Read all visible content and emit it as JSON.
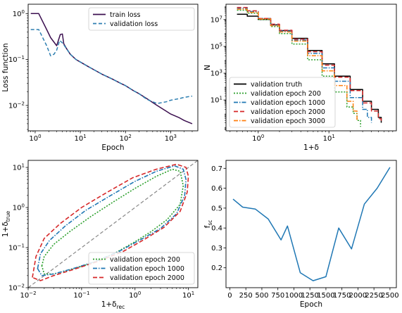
{
  "chart_data": [
    {
      "type": "line",
      "xlabel": "Epoch",
      "ylabel": "Loss function",
      "xscale": "log",
      "yscale": "log",
      "xlim": [
        0.7,
        4000
      ],
      "ylim": [
        0.0028,
        1.6
      ],
      "xticks": [
        {
          "v": 1,
          "b": "10",
          "e": "0"
        },
        {
          "v": 10,
          "b": "10",
          "e": "1"
        },
        {
          "v": 100,
          "b": "10",
          "e": "2"
        },
        {
          "v": 1000,
          "b": "10",
          "e": "3"
        }
      ],
      "yticks": [
        {
          "v": 1,
          "b": "10",
          "e": "0"
        },
        {
          "v": 0.1,
          "b": "10",
          "e": "−1"
        },
        {
          "v": 0.01,
          "b": "10",
          "e": "−2"
        }
      ],
      "legend_loc": "top-right",
      "series": [
        {
          "name": "train loss",
          "color": "#3b0f4f",
          "dash": "",
          "x": [
            0.8,
            1.2,
            1.8,
            2.2,
            3.0,
            3.6,
            4.0,
            4.3,
            5,
            6,
            8,
            10,
            15,
            20,
            30,
            50,
            80,
            100,
            150,
            200,
            300,
            500,
            800,
            1000,
            1500,
            2000,
            3000
          ],
          "y": [
            1.0,
            1.0,
            0.45,
            0.3,
            0.2,
            0.35,
            0.36,
            0.22,
            0.17,
            0.13,
            0.1,
            0.088,
            0.07,
            0.06,
            0.048,
            0.038,
            0.03,
            0.027,
            0.021,
            0.018,
            0.014,
            0.01,
            0.0075,
            0.0065,
            0.0055,
            0.0047,
            0.004
          ]
        },
        {
          "name": "validation loss",
          "color": "#2e7fb1",
          "dash": "5,3",
          "x": [
            0.8,
            1.2,
            1.8,
            2.2,
            2.6,
            3.0,
            3.5,
            4.0,
            5,
            6,
            8,
            10,
            15,
            20,
            30,
            50,
            80,
            100,
            150,
            200,
            300,
            500,
            800,
            1000,
            1500,
            2000,
            3000
          ],
          "y": [
            0.45,
            0.45,
            0.2,
            0.12,
            0.13,
            0.16,
            0.26,
            0.23,
            0.17,
            0.13,
            0.1,
            0.088,
            0.07,
            0.06,
            0.048,
            0.038,
            0.03,
            0.027,
            0.021,
            0.018,
            0.0135,
            0.011,
            0.012,
            0.013,
            0.014,
            0.015,
            0.016
          ]
        }
      ]
    },
    {
      "type": "step",
      "xlabel": "1+δ",
      "ylabel": "N",
      "xscale": "log",
      "yscale": "log",
      "xlim": [
        0.35,
        90
      ],
      "ylim": [
        0.05,
        140000000.0
      ],
      "xticks": [
        {
          "v": 1,
          "b": "10",
          "e": "0"
        },
        {
          "v": 10,
          "b": "10",
          "e": "1"
        }
      ],
      "yticks": [
        {
          "v": 10,
          "b": "10",
          "e": "1"
        },
        {
          "v": 1000,
          "b": "10",
          "e": "3"
        },
        {
          "v": 100000,
          "b": "10",
          "e": "5"
        },
        {
          "v": 10000000,
          "b": "10",
          "e": "7"
        }
      ],
      "legend_loc": "lower-left",
      "series": [
        {
          "name": "validation truth",
          "color": "#000000",
          "dash": "",
          "x": [
            0.5,
            0.7,
            1.0,
            1.5,
            2,
            3,
            5,
            8,
            12,
            20,
            30,
            40,
            50,
            55
          ],
          "y": [
            25000000,
            18000000,
            10000000,
            4000000,
            1500000,
            400000,
            50000,
            5000,
            600,
            60,
            8,
            2,
            0.5,
            0.2
          ]
        },
        {
          "name": "validation epoch 200",
          "color": "#2ca02c",
          "dash": "2,2",
          "x": [
            0.5,
            0.7,
            1.0,
            1.5,
            2,
            3,
            5,
            8,
            12,
            18,
            22,
            25,
            28
          ],
          "y": [
            50000000,
            30000000,
            10000000,
            3000000,
            900000,
            150000,
            10000,
            600,
            40,
            3,
            1,
            0.3,
            0.1
          ]
        },
        {
          "name": "validation epoch 1000",
          "color": "#1f77b4",
          "dash": "6,2,1.5,2",
          "x": [
            0.5,
            0.7,
            1.0,
            1.5,
            2,
            3,
            5,
            8,
            12,
            20,
            30,
            35,
            40
          ],
          "y": [
            70000000,
            40000000,
            12000000,
            4000000,
            1400000,
            300000,
            30000,
            2500,
            250,
            15,
            2,
            0.5,
            0.2
          ]
        },
        {
          "name": "validation epoch 2000",
          "color": "#d62728",
          "dash": "6,3",
          "x": [
            0.5,
            0.7,
            1.0,
            1.5,
            2,
            3,
            5,
            8,
            12,
            20,
            30,
            40,
            50,
            55
          ],
          "y": [
            80000000,
            45000000,
            12000000,
            4500000,
            1600000,
            350000,
            40000,
            4000,
            500,
            50,
            6,
            1.5,
            0.4,
            0.2
          ]
        },
        {
          "name": "validation epoch 3000",
          "color": "#ff7f0e",
          "dash": "6,2,1.5,2",
          "x": [
            0.5,
            0.7,
            1.0,
            1.5,
            2,
            3,
            5,
            8,
            12,
            18,
            22,
            25
          ],
          "y": [
            60000000,
            35000000,
            11000000,
            3500000,
            1200000,
            250000,
            20000,
            1500,
            120,
            8,
            1.5,
            0.3
          ]
        }
      ]
    },
    {
      "type": "contour",
      "xlabel": "1+δ",
      "xlabel_sub": "rec",
      "ylabel": "1+δ",
      "ylabel_sub": "true",
      "xscale": "log",
      "yscale": "log",
      "xlim": [
        0.01,
        15
      ],
      "ylim": [
        0.01,
        15
      ],
      "xticks": [
        {
          "v": 0.01,
          "b": "10",
          "e": "−2"
        },
        {
          "v": 0.1,
          "b": "10",
          "e": "−1"
        },
        {
          "v": 1,
          "b": "10",
          "e": "0"
        },
        {
          "v": 10,
          "b": "10",
          "e": "1"
        }
      ],
      "yticks": [
        {
          "v": 0.01,
          "b": "10",
          "e": "−2"
        },
        {
          "v": 0.1,
          "b": "10",
          "e": "−1"
        },
        {
          "v": 1,
          "b": "10",
          "e": "0"
        },
        {
          "v": 10,
          "b": "10",
          "e": "1"
        }
      ],
      "legend_loc": "lower-right",
      "diagonal": true,
      "series": [
        {
          "name": "validation epoch 200",
          "color": "#2ca02c",
          "dash": "2,2",
          "x": [
            0.018,
            0.02,
            0.03,
            0.06,
            0.15,
            0.4,
            1.0,
            2.5,
            5,
            7,
            8,
            7,
            4,
            2,
            1,
            0.4,
            0.15,
            0.06,
            0.03,
            0.02,
            0.018
          ],
          "y": [
            0.035,
            0.06,
            0.12,
            0.25,
            0.6,
            1.4,
            3,
            6,
            9,
            8,
            3.5,
            1.2,
            0.5,
            0.25,
            0.14,
            0.07,
            0.04,
            0.028,
            0.022,
            0.022,
            0.035
          ]
        },
        {
          "name": "validation epoch 1000",
          "color": "#1f77b4",
          "dash": "6,2,1.5,2",
          "x": [
            0.015,
            0.017,
            0.025,
            0.05,
            0.12,
            0.35,
            1.0,
            2.5,
            5.5,
            8,
            9,
            8.5,
            6,
            3,
            1.3,
            0.5,
            0.18,
            0.07,
            0.03,
            0.018,
            0.015
          ],
          "y": [
            0.03,
            0.07,
            0.15,
            0.35,
            0.85,
            2.0,
            4.5,
            8,
            11,
            9,
            5,
            2,
            0.7,
            0.3,
            0.16,
            0.08,
            0.045,
            0.03,
            0.022,
            0.02,
            0.03
          ]
        },
        {
          "name": "validation epoch 2000",
          "color": "#d62728",
          "dash": "6,3",
          "x": [
            0.012,
            0.014,
            0.02,
            0.04,
            0.1,
            0.3,
            0.9,
            2.5,
            6,
            9,
            10,
            9.5,
            7,
            3.5,
            1.5,
            0.6,
            0.2,
            0.08,
            0.03,
            0.017,
            0.012
          ],
          "y": [
            0.018,
            0.06,
            0.17,
            0.4,
            1.0,
            2.4,
            5.5,
            9,
            12,
            10,
            6,
            2.4,
            0.8,
            0.32,
            0.16,
            0.08,
            0.045,
            0.03,
            0.02,
            0.015,
            0.018
          ]
        }
      ]
    },
    {
      "type": "line",
      "xlabel": "Epoch",
      "ylabel": "f",
      "ylabel_sub": "sc",
      "xscale": "linear",
      "yscale": "linear",
      "xlim": [
        -60,
        2600
      ],
      "ylim": [
        0.1,
        0.74
      ],
      "xticks": [
        {
          "v": 0,
          "t": "0"
        },
        {
          "v": 250,
          "t": "250"
        },
        {
          "v": 500,
          "t": "500"
        },
        {
          "v": 750,
          "t": "750"
        },
        {
          "v": 1000,
          "t": "1000"
        },
        {
          "v": 1250,
          "t": "1250"
        },
        {
          "v": 1500,
          "t": "1500"
        },
        {
          "v": 1750,
          "t": "1750"
        },
        {
          "v": 2000,
          "t": "2000"
        },
        {
          "v": 2250,
          "t": "2250"
        },
        {
          "v": 2500,
          "t": "2500"
        }
      ],
      "yticks": [
        {
          "v": 0.2,
          "t": "0.2"
        },
        {
          "v": 0.3,
          "t": "0.3"
        },
        {
          "v": 0.4,
          "t": "0.4"
        },
        {
          "v": 0.5,
          "t": "0.5"
        },
        {
          "v": 0.6,
          "t": "0.6"
        },
        {
          "v": 0.7,
          "t": "0.7"
        }
      ],
      "series": [
        {
          "name": "",
          "color": "#1f77b4",
          "dash": "",
          "x": [
            50,
            200,
            400,
            600,
            800,
            900,
            1100,
            1300,
            1500,
            1700,
            1900,
            2100,
            2300,
            2500
          ],
          "y": [
            0.545,
            0.505,
            0.495,
            0.445,
            0.34,
            0.41,
            0.175,
            0.135,
            0.155,
            0.4,
            0.295,
            0.52,
            0.6,
            0.705
          ]
        }
      ]
    }
  ]
}
